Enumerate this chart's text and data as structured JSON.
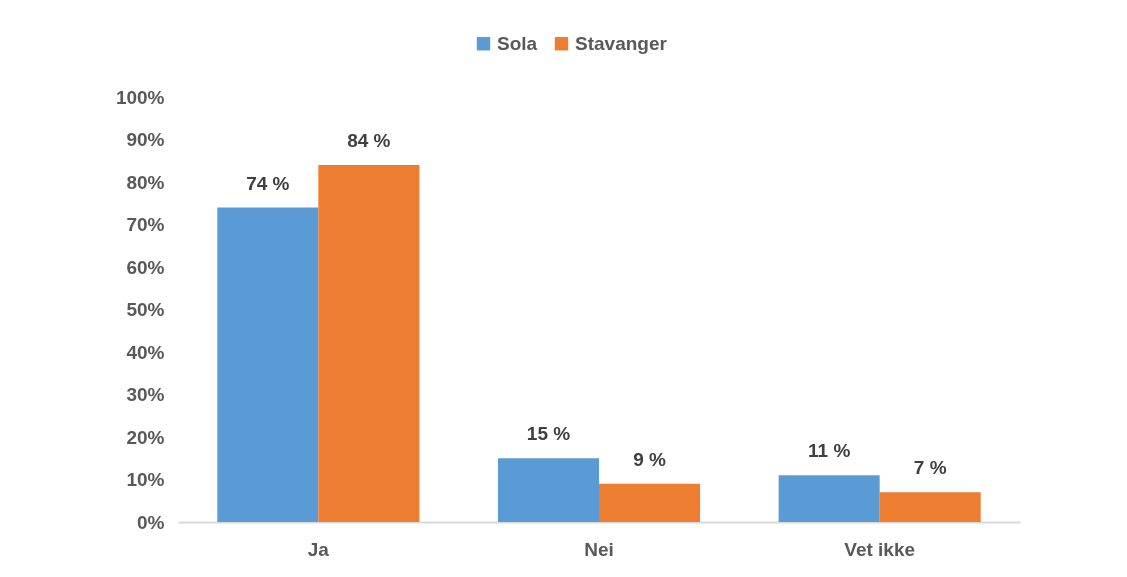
{
  "chart_data": {
    "type": "bar",
    "categories": [
      "Ja",
      "Nei",
      "Vet ikke"
    ],
    "series": [
      {
        "name": "Sola",
        "color": "#5b9bd5",
        "values": [
          74,
          15,
          11
        ],
        "value_labels": [
          "74 %",
          "15 %",
          "11 %"
        ]
      },
      {
        "name": "Stavanger",
        "color": "#ed7d31",
        "values": [
          84,
          9,
          7
        ],
        "value_labels": [
          "84 %",
          "9 %",
          "7 %"
        ]
      }
    ],
    "ylim": [
      0,
      100
    ],
    "yticks": [
      {
        "value": 0,
        "label": "0%"
      },
      {
        "value": 10,
        "label": "10%"
      },
      {
        "value": 20,
        "label": "20%"
      },
      {
        "value": 30,
        "label": "30%"
      },
      {
        "value": 40,
        "label": "40%"
      },
      {
        "value": 50,
        "label": "50%"
      },
      {
        "value": 60,
        "label": "60%"
      },
      {
        "value": 70,
        "label": "70%"
      },
      {
        "value": 80,
        "label": "80%"
      },
      {
        "value": 90,
        "label": "90%"
      },
      {
        "value": 100,
        "label": "100%"
      }
    ],
    "legend": "top"
  }
}
